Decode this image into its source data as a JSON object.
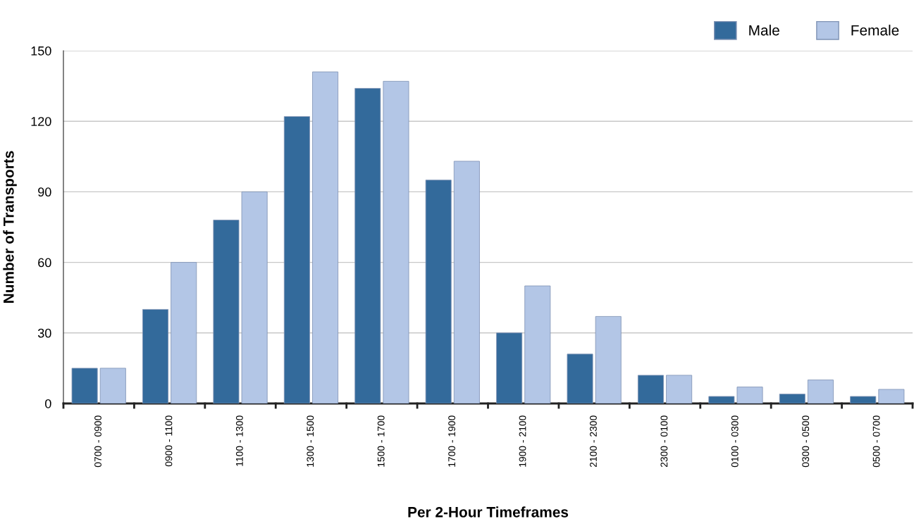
{
  "chart_data": {
    "type": "bar",
    "xlabel": "Per 2-Hour Timeframes",
    "ylabel": "Number of Transports",
    "categories": [
      "0700 - 0900",
      "0900 - 1100",
      "1100 - 1300",
      "1300 - 1500",
      "1500 - 1700",
      "1700 - 1900",
      "1900 - 2100",
      "2100 - 2300",
      "2300 - 0100",
      "0100 - 0300",
      "0300 - 0500",
      "0500 - 0700"
    ],
    "series": [
      {
        "name": "Male",
        "color": "#336a9b",
        "values": [
          15,
          40,
          78,
          122,
          134,
          95,
          30,
          21,
          12,
          3,
          4,
          3
        ]
      },
      {
        "name": "Female",
        "color": "#b3c6e6",
        "values": [
          15,
          60,
          90,
          141,
          137,
          103,
          50,
          37,
          12,
          7,
          10,
          6
        ]
      }
    ],
    "ylim": [
      0,
      150
    ],
    "yticks": [
      0,
      30,
      60,
      90,
      120,
      150
    ],
    "grid": "y",
    "legend": "top right"
  }
}
